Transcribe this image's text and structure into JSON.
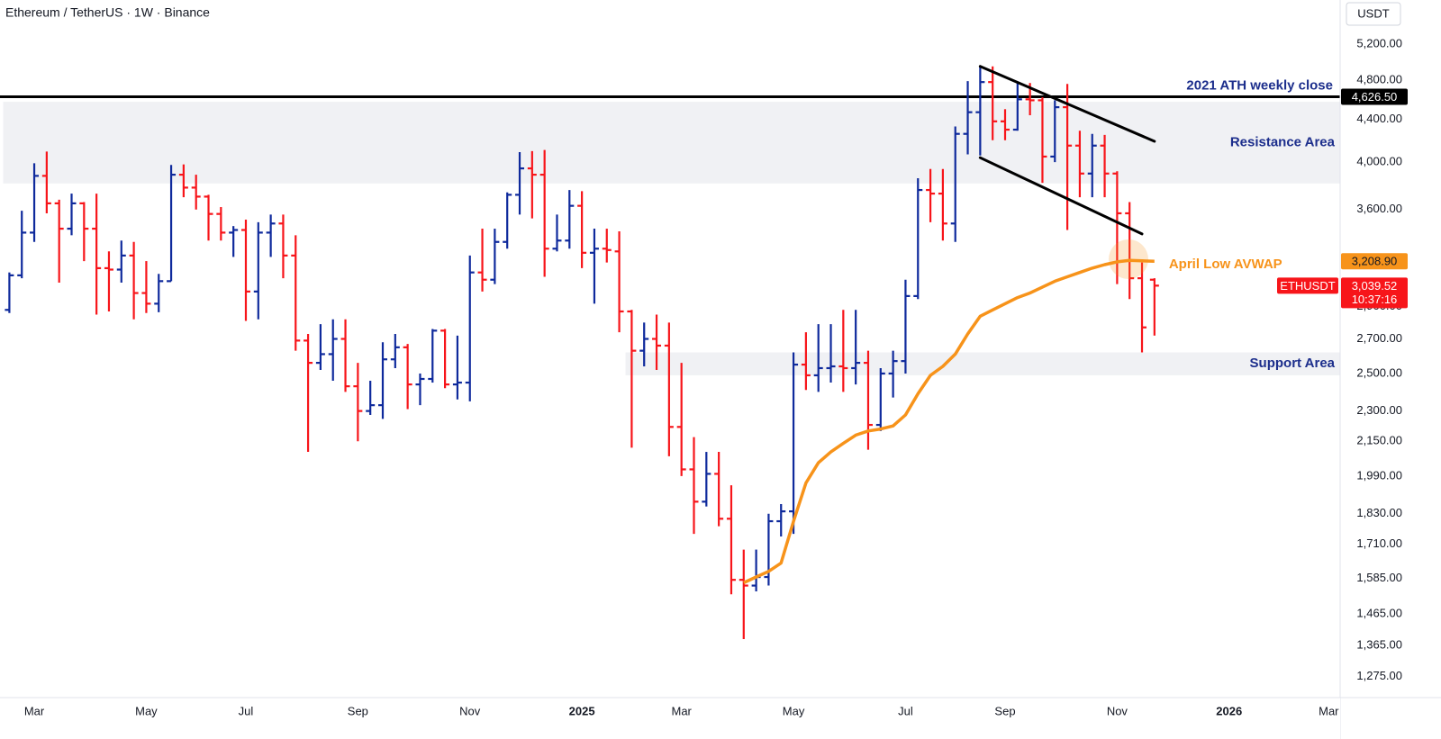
{
  "chart_data": {
    "type": "ohlc",
    "title": "Ethereum / TetherUS · 1W · Binance",
    "currency": "USDT",
    "categories": [
      null,
      null,
      "Mar",
      null,
      null,
      null,
      null,
      null,
      null,
      null,
      null,
      "May",
      null,
      null,
      null,
      null,
      null,
      null,
      null,
      "Jul",
      null,
      null,
      null,
      null,
      null,
      null,
      null,
      null,
      "Sep",
      null,
      null,
      null,
      null,
      null,
      null,
      null,
      null,
      "Nov",
      null,
      null,
      null,
      null,
      null,
      null,
      null,
      null,
      "2025",
      null,
      null,
      null,
      null,
      null,
      null,
      null,
      "Mar",
      null,
      null,
      null,
      null,
      null,
      null,
      null,
      null,
      "May",
      null,
      null,
      null,
      null,
      null,
      null,
      null,
      null,
      "Jul",
      null,
      null,
      null,
      null,
      null,
      null,
      null,
      "Sep",
      null,
      null,
      null,
      null,
      null,
      null,
      null,
      null,
      "Nov",
      null,
      null,
      null,
      null,
      null,
      null,
      null,
      null,
      "2026",
      null,
      null,
      null,
      null,
      null,
      null,
      null,
      "Mar"
    ],
    "log_scale": true,
    "ylim": [
      1216,
      5737
    ],
    "yticks": [
      {
        "value": 5200,
        "label": "5,200.00"
      },
      {
        "value": 4800,
        "label": "4,800.00"
      },
      {
        "value": 4400,
        "label": "4,400.00"
      },
      {
        "value": 4000,
        "label": "4,000.00"
      },
      {
        "value": 3600,
        "label": "3,600.00"
      },
      {
        "value": 2900,
        "label": "2,900.00"
      },
      {
        "value": 2700,
        "label": "2,700.00"
      },
      {
        "value": 2500,
        "label": "2,500.00"
      },
      {
        "value": 2300,
        "label": "2,300.00"
      },
      {
        "value": 2150,
        "label": "2,150.00"
      },
      {
        "value": 1990,
        "label": "1,990.00"
      },
      {
        "value": 1830,
        "label": "1,830.00"
      },
      {
        "value": 1710,
        "label": "1,710.00"
      },
      {
        "value": 1585,
        "label": "1,585.00"
      },
      {
        "value": 1465,
        "label": "1,465.00"
      },
      {
        "value": 1365,
        "label": "1,365.00"
      },
      {
        "value": 1275,
        "label": "1,275.00"
      }
    ],
    "ohlc": {
      "symbol": "ETHUSDT",
      "up_color": "#0f2a9c",
      "down_color": "#f7151a",
      "last_label": "3,039.52",
      "countdown": "10:37:16",
      "open": [
        2880,
        3110,
        3420,
        3880,
        3650,
        3450,
        3650,
        3450,
        3160,
        3150,
        3250,
        2990,
        2920,
        3070,
        3890,
        3780,
        3705,
        3565,
        3420,
        3440,
        3000,
        3420,
        3490,
        3250,
        2690,
        2560,
        2610,
        2700,
        2430,
        2300,
        2330,
        2580,
        2650,
        2440,
        2470,
        2750,
        2440,
        2450,
        3130,
        3080,
        3350,
        3720,
        3945,
        3890,
        3300,
        3360,
        3630,
        3270,
        3300,
        3280,
        2870,
        2630,
        2700,
        2660,
        2220,
        2020,
        1880,
        2000,
        1810,
        1580,
        1560,
        1590,
        1800,
        1840,
        2550,
        2490,
        2530,
        2540,
        2530,
        2560,
        2230,
        2500,
        2570,
        2970,
        3760,
        3730,
        3490,
        4260,
        4470,
        4780,
        4380,
        4300,
        4600,
        4590,
        4050,
        4520,
        4150,
        3900,
        4150,
        3900,
        3570,
        3090,
        3080,
        null,
        null,
        null,
        null,
        null,
        null,
        null,
        null,
        null,
        null,
        null,
        null,
        null,
        null
      ],
      "high": [
        3130,
        3590,
        3990,
        4095,
        3680,
        3730,
        3660,
        3730,
        3280,
        3360,
        3350,
        3210,
        3120,
        3975,
        3980,
        3890,
        3720,
        3620,
        3470,
        3520,
        3500,
        3560,
        3560,
        3400,
        2730,
        2790,
        2820,
        2820,
        2560,
        2460,
        2680,
        2730,
        2670,
        2500,
        2760,
        2760,
        2720,
        3250,
        3450,
        3450,
        3740,
        4090,
        4100,
        4110,
        3560,
        3760,
        3750,
        3450,
        3450,
        3430,
        2880,
        2800,
        2850,
        2800,
        2560,
        2170,
        2100,
        2100,
        1950,
        1690,
        1690,
        1830,
        1870,
        2620,
        2740,
        2790,
        2790,
        2880,
        2880,
        2630,
        2530,
        2630,
        3080,
        3860,
        3940,
        3940,
        4330,
        4790,
        4950,
        4950,
        4500,
        4770,
        4770,
        4620,
        4590,
        4760,
        4290,
        4260,
        4250,
        3920,
        3660,
        3200,
        3090,
        null,
        null,
        null,
        null,
        null,
        null,
        null,
        null,
        null,
        null,
        null,
        null,
        null,
        null
      ],
      "low": [
        2860,
        3090,
        3350,
        3570,
        3060,
        3400,
        3210,
        2850,
        2870,
        3060,
        2820,
        2860,
        2865,
        3070,
        3700,
        3600,
        3360,
        3360,
        3240,
        2810,
        2820,
        3240,
        3090,
        2630,
        2100,
        2520,
        2460,
        2400,
        2150,
        2280,
        2260,
        2530,
        2310,
        2330,
        2450,
        2420,
        2360,
        2350,
        3000,
        3050,
        3300,
        3560,
        3530,
        3100,
        3280,
        3300,
        3160,
        2920,
        3200,
        2740,
        2120,
        2540,
        2520,
        2080,
        1990,
        1750,
        1860,
        1780,
        1530,
        1385,
        1540,
        1560,
        1740,
        1750,
        2410,
        2400,
        2450,
        2400,
        2440,
        2110,
        2200,
        2370,
        2500,
        2950,
        3500,
        3360,
        3350,
        4070,
        4060,
        4200,
        4200,
        4290,
        4440,
        3820,
        4000,
        3440,
        3700,
        3700,
        3700,
        3050,
        2950,
        2620,
        2720,
        null,
        null,
        null,
        null,
        null,
        null,
        null,
        null,
        null,
        null,
        null,
        null,
        null,
        null
      ],
      "close": [
        3110,
        3420,
        3880,
        3650,
        3450,
        3650,
        3450,
        3160,
        3150,
        3250,
        2990,
        2920,
        3070,
        3890,
        3780,
        3705,
        3565,
        3420,
        3440,
        3000,
        3420,
        3490,
        3250,
        2690,
        2560,
        2610,
        2700,
        2430,
        2300,
        2330,
        2580,
        2650,
        2440,
        2470,
        2750,
        2440,
        2450,
        3130,
        3080,
        3350,
        3720,
        3945,
        3890,
        3300,
        3360,
        3630,
        3270,
        3300,
        3290,
        2870,
        2630,
        2700,
        2660,
        2220,
        2020,
        1880,
        2000,
        1810,
        1580,
        1560,
        1590,
        1800,
        1840,
        2550,
        2490,
        2530,
        2540,
        2530,
        2560,
        2230,
        2500,
        2570,
        2970,
        3760,
        3730,
        3490,
        4260,
        4470,
        4780,
        4380,
        4300,
        4600,
        4590,
        4050,
        4520,
        4150,
        3900,
        4150,
        3900,
        3570,
        3090,
        2770,
        3039.52,
        null,
        null,
        null,
        null,
        null,
        null,
        null,
        null,
        null,
        null,
        null,
        null,
        null,
        null
      ]
    },
    "avwap": {
      "name": "April Low AVWAP",
      "color": "#f7931a",
      "value_label": "3,208.90",
      "values": [
        null,
        null,
        null,
        null,
        null,
        null,
        null,
        null,
        null,
        null,
        null,
        null,
        null,
        null,
        null,
        null,
        null,
        null,
        null,
        null,
        null,
        null,
        null,
        null,
        null,
        null,
        null,
        null,
        null,
        null,
        null,
        null,
        null,
        null,
        null,
        null,
        null,
        null,
        null,
        null,
        null,
        null,
        null,
        null,
        null,
        null,
        null,
        null,
        null,
        null,
        null,
        null,
        null,
        null,
        null,
        null,
        null,
        null,
        null,
        1570,
        1590,
        1610,
        1640,
        1800,
        1960,
        2050,
        2100,
        2140,
        2180,
        2200,
        2210,
        2225,
        2280,
        2390,
        2490,
        2540,
        2610,
        2730,
        2840,
        2880,
        2920,
        2960,
        2990,
        3030,
        3070,
        3100,
        3130,
        3160,
        3185,
        3205,
        3215,
        3212,
        3208.9,
        null,
        null,
        null,
        null,
        null,
        null,
        null,
        null,
        null,
        null,
        null,
        null,
        null,
        null
      ]
    },
    "hlines": [
      {
        "name": "2021 ATH weekly close",
        "value": 4626.5,
        "label": "4,626.50",
        "color": "#000000"
      }
    ],
    "zones": [
      {
        "label": "Resistance Area",
        "from": 3815,
        "to": 4575,
        "start": 0,
        "color": "#f0f1f4"
      },
      {
        "label": "Support Area",
        "from": 2490,
        "to": 2620,
        "start": 50,
        "color": "#f0f1f4"
      }
    ],
    "trendlines": [
      {
        "color": "#000000",
        "points": [
          [
            78,
            4950
          ],
          [
            92,
            4190
          ]
        ]
      },
      {
        "color": "#000000",
        "points": [
          [
            78,
            4040
          ],
          [
            91,
            3410
          ]
        ]
      }
    ]
  }
}
